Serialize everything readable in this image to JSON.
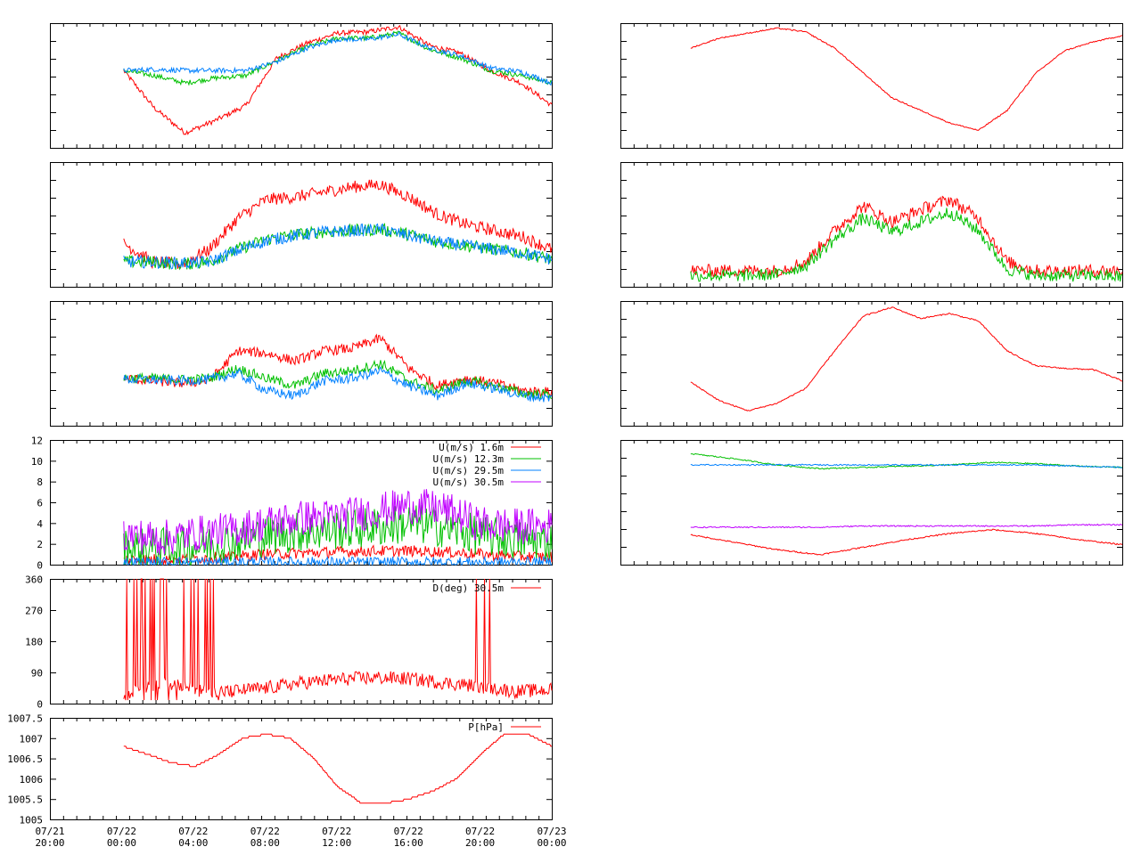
{
  "colors": {
    "u_1_6m": "#ff0000",
    "u_12_3m": "#00c000",
    "u_29_5m": "#0080ff",
    "u_30_5m": "#c000ff",
    "direction": "#ff0000",
    "pressure": "#ff0000"
  },
  "x_axis": {
    "ticks": [
      {
        "date": "07/21",
        "time": "20:00"
      },
      {
        "date": "07/22",
        "time": "00:00"
      },
      {
        "date": "07/22",
        "time": "04:00"
      },
      {
        "date": "07/22",
        "time": "08:00"
      },
      {
        "date": "07/22",
        "time": "12:00"
      },
      {
        "date": "07/22",
        "time": "16:00"
      },
      {
        "date": "07/22",
        "time": "20:00"
      },
      {
        "date": "07/23",
        "time": "00:00"
      }
    ]
  },
  "chart_data": [
    {
      "id": "left-panel-1",
      "type": "line",
      "x_range": [
        "07/21 20:00",
        "07/23 00:00"
      ],
      "y_labels_shown": false,
      "series": [
        {
          "color": "#ff0000",
          "values": [
            0.62,
            0.32,
            0.12,
            0.22,
            0.34,
            0.72,
            0.84,
            0.92,
            0.93,
            0.97,
            0.82,
            0.76,
            0.62,
            0.52,
            0.34
          ]
        },
        {
          "color": "#00c000",
          "values": [
            0.62,
            0.58,
            0.52,
            0.56,
            0.58,
            0.7,
            0.81,
            0.88,
            0.88,
            0.92,
            0.79,
            0.72,
            0.62,
            0.58,
            0.52
          ]
        },
        {
          "color": "#0080ff",
          "values": [
            0.62,
            0.63,
            0.62,
            0.62,
            0.62,
            0.69,
            0.8,
            0.87,
            0.87,
            0.91,
            0.8,
            0.74,
            0.64,
            0.61,
            0.52
          ]
        }
      ]
    },
    {
      "id": "left-panel-2",
      "type": "line",
      "x_range": [
        "07/21 20:00",
        "07/23 00:00"
      ],
      "y_labels_shown": false,
      "series": [
        {
          "color": "#ff0000",
          "values": [
            0.35,
            0.2,
            0.18,
            0.3,
            0.55,
            0.7,
            0.72,
            0.76,
            0.8,
            0.82,
            0.72,
            0.58,
            0.5,
            0.45,
            0.4,
            0.3
          ]
        },
        {
          "color": "#00c000",
          "values": [
            0.2,
            0.2,
            0.18,
            0.2,
            0.3,
            0.38,
            0.42,
            0.44,
            0.45,
            0.46,
            0.42,
            0.36,
            0.33,
            0.3,
            0.27,
            0.22
          ]
        },
        {
          "color": "#0080ff",
          "values": [
            0.2,
            0.2,
            0.19,
            0.2,
            0.29,
            0.37,
            0.41,
            0.44,
            0.45,
            0.46,
            0.41,
            0.36,
            0.33,
            0.3,
            0.27,
            0.22
          ]
        }
      ]
    },
    {
      "id": "left-panel-3",
      "type": "line",
      "x_range": [
        "07/21 20:00",
        "07/23 00:00"
      ],
      "y_labels_shown": false,
      "series": [
        {
          "color": "#ff0000",
          "values": [
            0.38,
            0.36,
            0.34,
            0.36,
            0.6,
            0.58,
            0.52,
            0.6,
            0.62,
            0.7,
            0.46,
            0.32,
            0.38,
            0.34,
            0.28,
            0.27
          ]
        },
        {
          "color": "#00c000",
          "values": [
            0.38,
            0.38,
            0.37,
            0.38,
            0.46,
            0.38,
            0.32,
            0.42,
            0.44,
            0.5,
            0.36,
            0.28,
            0.36,
            0.32,
            0.26,
            0.25
          ]
        },
        {
          "color": "#0080ff",
          "values": [
            0.37,
            0.37,
            0.36,
            0.37,
            0.42,
            0.28,
            0.24,
            0.36,
            0.38,
            0.44,
            0.32,
            0.24,
            0.34,
            0.3,
            0.24,
            0.22
          ]
        }
      ]
    },
    {
      "id": "wind-speed-panel",
      "type": "line",
      "x_range": [
        "07/21 20:00",
        "07/23 00:00"
      ],
      "ylim": [
        0,
        12
      ],
      "yticks": [
        "0",
        "2",
        "4",
        "6",
        "8",
        "10",
        "12"
      ],
      "legend_position": "top-right",
      "series": [
        {
          "name": "U(m/s)  1.6m",
          "color": "#ff0000",
          "values": [
            0.3,
            0.3,
            0.4,
            0.5,
            0.8,
            0.9,
            1.0,
            1.1,
            1.1,
            1.0,
            0.8,
            0.6,
            0.5
          ]
        },
        {
          "name": "U(m/s) 12.3m",
          "color": "#00c000",
          "values": [
            0.8,
            0.8,
            1.0,
            1.4,
            2.0,
            2.4,
            2.6,
            2.8,
            3.2,
            2.8,
            2.0,
            1.6,
            1.4
          ]
        },
        {
          "name": "U(m/s) 29.5m",
          "color": "#0080ff",
          "values": [
            0,
            0,
            0,
            0,
            0,
            0,
            0,
            0,
            0,
            0,
            0,
            0,
            0
          ]
        },
        {
          "name": "U(m/s) 30.5m",
          "color": "#c000ff",
          "values": [
            2.2,
            1.8,
            2.3,
            2.6,
            3.3,
            3.8,
            3.9,
            4.4,
            5.0,
            4.6,
            3.2,
            3.0,
            3.0
          ]
        }
      ]
    },
    {
      "id": "direction-panel",
      "type": "line",
      "x_range": [
        "07/21 20:00",
        "07/23 00:00"
      ],
      "ylim": [
        0,
        360
      ],
      "yticks": [
        "0",
        "90",
        "180",
        "270",
        "360"
      ],
      "legend_position": "top-right",
      "series": [
        {
          "name": "D(deg)  30.5m",
          "color": "#ff0000",
          "values": [
            30,
            60,
            40,
            35,
            45,
            60,
            70,
            75,
            72,
            60,
            50,
            35,
            40
          ]
        }
      ]
    },
    {
      "id": "pressure-panel",
      "type": "line",
      "x_range": [
        "07/21 20:00",
        "07/23 00:00"
      ],
      "ylim": [
        1005,
        1007.5
      ],
      "yticks": [
        "1005",
        "1005.5",
        "1006",
        "1006.5",
        "1007",
        "1007.5"
      ],
      "legend_position": "top-right",
      "series": [
        {
          "name": "P[hPa]",
          "color": "#ff0000",
          "values": [
            1006.8,
            1006.6,
            1006.4,
            1006.3,
            1006.6,
            1007.0,
            1007.1,
            1007.0,
            1006.5,
            1005.8,
            1005.4,
            1005.4,
            1005.5,
            1005.7,
            1006.0,
            1006.6,
            1007.1,
            1007.1,
            1006.8
          ]
        }
      ]
    },
    {
      "id": "right-panel-1",
      "type": "line",
      "y_labels_shown": false,
      "series": [
        {
          "color": "#ff0000",
          "values": [
            0.8,
            0.88,
            0.92,
            0.96,
            0.93,
            0.8,
            0.6,
            0.4,
            0.3,
            0.2,
            0.14,
            0.3,
            0.6,
            0.78,
            0.85,
            0.9
          ]
        }
      ]
    },
    {
      "id": "right-panel-2",
      "type": "line",
      "y_labels_shown": false,
      "series": [
        {
          "color": "#ff0000",
          "values": [
            0.13,
            0.13,
            0.13,
            0.13,
            0.2,
            0.45,
            0.65,
            0.52,
            0.62,
            0.7,
            0.55,
            0.2,
            0.13,
            0.13,
            0.13,
            0.13
          ]
        },
        {
          "color": "#00c000",
          "values": [
            0.09,
            0.09,
            0.09,
            0.1,
            0.17,
            0.38,
            0.55,
            0.44,
            0.52,
            0.6,
            0.45,
            0.14,
            0.09,
            0.09,
            0.09,
            0.08
          ]
        }
      ]
    },
    {
      "id": "right-panel-3",
      "type": "line",
      "y_labels_shown": false,
      "series": [
        {
          "color": "#ff0000",
          "values": [
            0.35,
            0.2,
            0.12,
            0.18,
            0.3,
            0.6,
            0.88,
            0.95,
            0.86,
            0.9,
            0.84,
            0.6,
            0.48,
            0.46,
            0.45,
            0.36
          ]
        }
      ]
    },
    {
      "id": "right-panel-4",
      "type": "line",
      "y_labels_shown": false,
      "series": [
        {
          "color": "#00c000",
          "values": [
            0.89,
            0.85,
            0.8,
            0.77,
            0.78,
            0.79,
            0.8,
            0.82,
            0.81,
            0.79,
            0.78
          ]
        },
        {
          "color": "#0080ff",
          "values": [
            0.8,
            0.8,
            0.8,
            0.8,
            0.8,
            0.8,
            0.8,
            0.8,
            0.8,
            0.79,
            0.78
          ]
        },
        {
          "color": "#c000ff",
          "values": [
            0.3,
            0.3,
            0.3,
            0.3,
            0.31,
            0.31,
            0.31,
            0.31,
            0.31,
            0.32,
            0.32
          ]
        },
        {
          "color": "#ff0000",
          "values": [
            0.24,
            0.18,
            0.12,
            0.08,
            0.14,
            0.2,
            0.25,
            0.28,
            0.25,
            0.2,
            0.16
          ]
        }
      ]
    }
  ]
}
